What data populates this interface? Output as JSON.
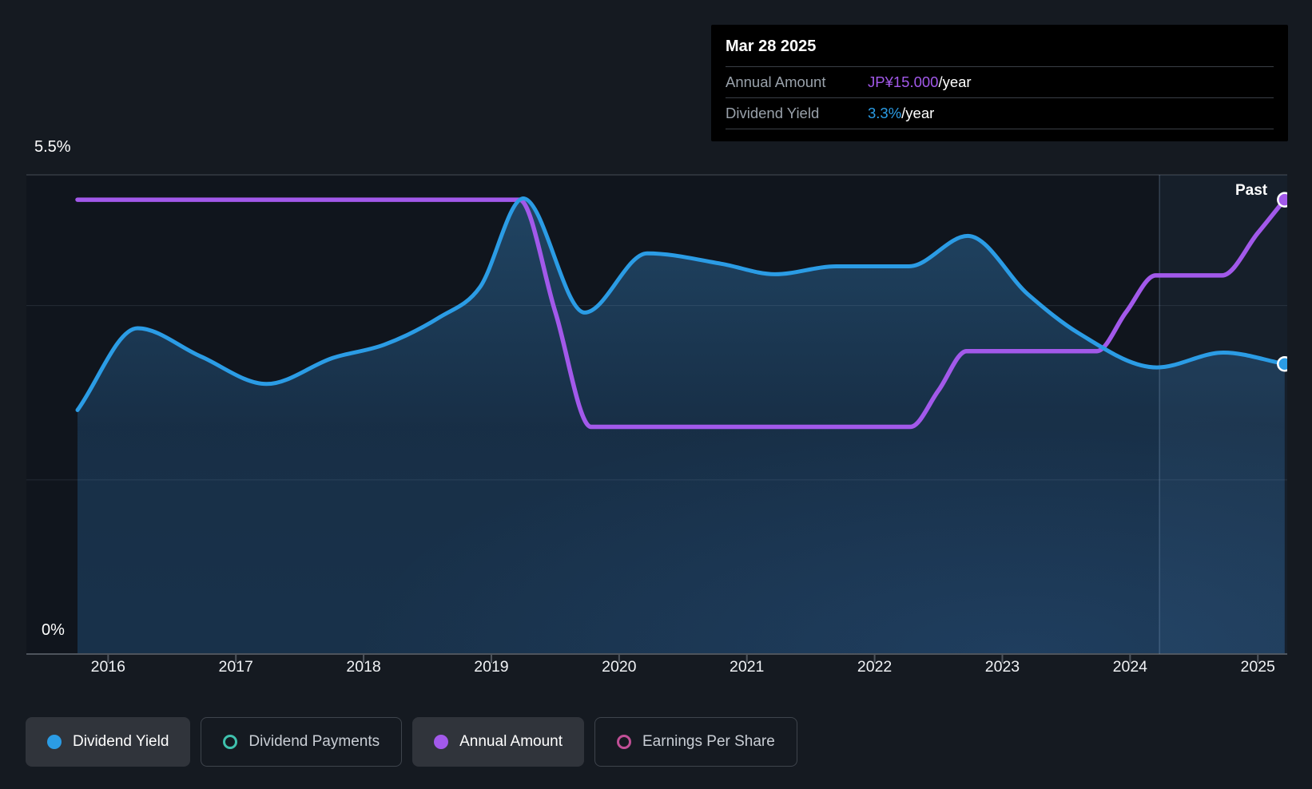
{
  "tooltip": {
    "date": "Mar 28 2025",
    "rows": [
      {
        "label": "Annual Amount",
        "value": "JP¥15.000",
        "suffix": "/year",
        "color": "#a259ea"
      },
      {
        "label": "Dividend Yield",
        "value": "3.3%",
        "suffix": "/year",
        "color": "#2b9ce5"
      }
    ]
  },
  "axes": {
    "y_max_label": "5.5%",
    "y_min_label": "0%",
    "x_ticks": [
      "2016",
      "2017",
      "2018",
      "2019",
      "2020",
      "2021",
      "2022",
      "2023",
      "2024",
      "2025"
    ]
  },
  "annotations": {
    "past_label": "Past"
  },
  "legend": [
    {
      "label": "Dividend Yield",
      "marker": "filled",
      "color": "#2b9ce5",
      "active": true
    },
    {
      "label": "Dividend Payments",
      "marker": "outline",
      "color": "#3fc1ad",
      "active": false
    },
    {
      "label": "Annual Amount",
      "marker": "filled",
      "color": "#a259ea",
      "active": true
    },
    {
      "label": "Earnings Per Share",
      "marker": "outline",
      "color": "#c04f96",
      "active": false
    }
  ],
  "chart_data": {
    "type": "line",
    "x_domain": [
      2015.36,
      2025.23
    ],
    "x_tick_years": [
      2016,
      2017,
      2018,
      2019,
      2020,
      2021,
      2022,
      2023,
      2024,
      2025
    ],
    "y_gridlines_pct": [
      5.5,
      4,
      2,
      0
    ],
    "past_divider_x": 2024.23,
    "legend_position": "bottom",
    "grid": true,
    "series": [
      {
        "name": "Dividend Yield",
        "unit": "%",
        "color": "#2b9ce5",
        "area": true,
        "end_dot": true,
        "axis_range": [
          0,
          5.5
        ],
        "points": [
          [
            2015.76,
            2.8
          ],
          [
            2016.23,
            3.74
          ],
          [
            2016.72,
            3.42
          ],
          [
            2017.24,
            3.1
          ],
          [
            2017.76,
            3.4
          ],
          [
            2018.16,
            3.55
          ],
          [
            2018.6,
            3.87
          ],
          [
            2018.91,
            4.21
          ],
          [
            2019.25,
            5.23
          ],
          [
            2019.73,
            3.92
          ],
          [
            2020.22,
            4.6
          ],
          [
            2020.8,
            4.48
          ],
          [
            2021.22,
            4.36
          ],
          [
            2021.7,
            4.45
          ],
          [
            2022.27,
            4.45
          ],
          [
            2022.73,
            4.8
          ],
          [
            2023.2,
            4.13
          ],
          [
            2023.6,
            3.68
          ],
          [
            2024.21,
            3.29
          ],
          [
            2024.73,
            3.46
          ],
          [
            2025.21,
            3.33
          ]
        ]
      },
      {
        "name": "Annual Amount",
        "unit": "JP¥/year",
        "color": "#a259ea",
        "area": false,
        "end_dot": true,
        "axis_range": [
          0,
          15.82
        ],
        "points": [
          [
            2015.76,
            15.0
          ],
          [
            2017.5,
            15.0
          ],
          [
            2019.0,
            15.0
          ],
          [
            2019.22,
            15.0
          ],
          [
            2019.5,
            11.3
          ],
          [
            2019.78,
            7.5
          ],
          [
            2020.6,
            7.5
          ],
          [
            2021.5,
            7.5
          ],
          [
            2022.28,
            7.5
          ],
          [
            2022.5,
            8.7
          ],
          [
            2022.72,
            10.0
          ],
          [
            2023.25,
            10.0
          ],
          [
            2023.74,
            10.0
          ],
          [
            2023.97,
            11.3
          ],
          [
            2024.2,
            12.5
          ],
          [
            2024.5,
            12.5
          ],
          [
            2024.72,
            12.5
          ],
          [
            2025.0,
            13.9
          ],
          [
            2025.21,
            15.0
          ]
        ]
      }
    ]
  }
}
